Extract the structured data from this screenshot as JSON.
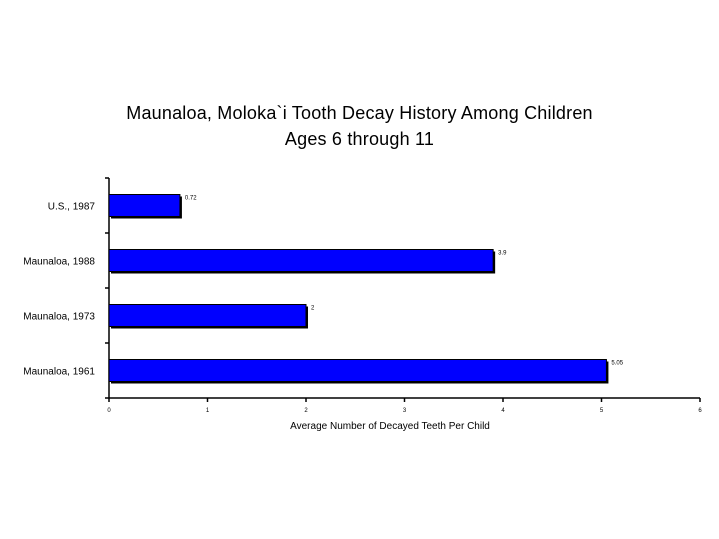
{
  "chart_data": {
    "type": "bar",
    "orientation": "horizontal",
    "title_lines": [
      "Maunaloa, Moloka`i Tooth Decay History Among Children",
      "Ages 6 through 11"
    ],
    "xlabel": "Average Number of Decayed Teeth Per Child",
    "ylabel": "",
    "xlim": [
      0,
      6
    ],
    "xticks": [
      0,
      1,
      2,
      3,
      4,
      5,
      6
    ],
    "categories": [
      "U.S., 1987",
      "Maunaloa, 1988",
      "Maunaloa, 1973",
      "Maunaloa, 1961"
    ],
    "values": [
      0.72,
      3.9,
      2,
      5.05
    ],
    "value_labels": [
      "0.72",
      "3.9",
      "2",
      "5.05"
    ],
    "bar_color": "#0000ff",
    "shadow_color": "#000000",
    "grid": false,
    "legend": "none"
  }
}
